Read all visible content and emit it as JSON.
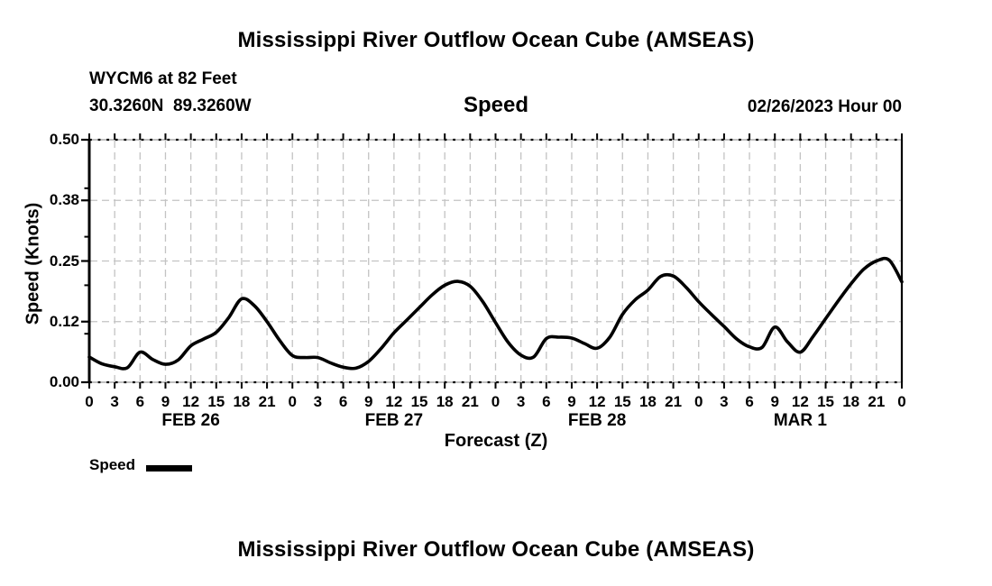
{
  "titles": {
    "top": "Mississippi River Outflow Ocean Cube (AMSEAS)",
    "bottom": "Mississippi River Outflow Ocean Cube (AMSEAS)"
  },
  "header": {
    "station": "WYCM6 at 82 Feet",
    "coordinates": "30.3260N  89.3260W",
    "variable": "Speed",
    "run": "02/26/2023 Hour 00"
  },
  "chart_data": {
    "type": "line",
    "title": "Speed",
    "xlabel": "Forecast (Z)",
    "ylabel": "Speed (Knots)",
    "x_unit": "hours",
    "x_range": [
      0,
      96
    ],
    "x_tick_step_hours": 3,
    "x_tick_labels": [
      "0",
      "3",
      "6",
      "9",
      "12",
      "15",
      "18",
      "21",
      "0",
      "3",
      "6",
      "9",
      "12",
      "15",
      "18",
      "21",
      "0",
      "3",
      "6",
      "9",
      "12",
      "15",
      "18",
      "21",
      "0",
      "3",
      "6",
      "9",
      "12",
      "15",
      "18",
      "21",
      "0"
    ],
    "day_labels": [
      {
        "label": "FEB 26",
        "center_hour": 12
      },
      {
        "label": "FEB 27",
        "center_hour": 36
      },
      {
        "label": "FEB 28",
        "center_hour": 60
      },
      {
        "label": "MAR 1",
        "center_hour": 84
      }
    ],
    "ylim": [
      0,
      0.5
    ],
    "y_major_ticks": [
      0,
      0.125,
      0.25,
      0.375,
      0.5
    ],
    "y_major_tick_labels": [
      "0.00",
      "0.12",
      "0.25",
      "0.38",
      "0.50"
    ],
    "y_minor_ticks": [
      0.1,
      0.2,
      0.3,
      0.4
    ],
    "grid": true,
    "legend_position": "bottom-left",
    "legend": [
      {
        "label": "Speed",
        "color": "#000000"
      }
    ],
    "colors": {
      "line": "#000000",
      "grid": "#c3c3c3",
      "axis": "#000000",
      "border_base": "#9a9a9a"
    },
    "series": [
      {
        "name": "Speed",
        "unit": "knots",
        "points": [
          [
            0,
            0.052
          ],
          [
            1.5,
            0.038
          ],
          [
            3,
            0.032
          ],
          [
            4.5,
            0.03
          ],
          [
            6,
            0.062
          ],
          [
            7.5,
            0.047
          ],
          [
            9,
            0.037
          ],
          [
            10.5,
            0.046
          ],
          [
            12,
            0.075
          ],
          [
            13.5,
            0.089
          ],
          [
            15,
            0.103
          ],
          [
            16.5,
            0.134
          ],
          [
            18,
            0.172
          ],
          [
            19.5,
            0.158
          ],
          [
            21,
            0.125
          ],
          [
            22.5,
            0.086
          ],
          [
            24,
            0.055
          ],
          [
            25.5,
            0.051
          ],
          [
            27,
            0.051
          ],
          [
            28.5,
            0.04
          ],
          [
            30,
            0.031
          ],
          [
            31.5,
            0.029
          ],
          [
            33,
            0.043
          ],
          [
            34.5,
            0.07
          ],
          [
            36,
            0.102
          ],
          [
            37.5,
            0.128
          ],
          [
            39,
            0.154
          ],
          [
            40.5,
            0.18
          ],
          [
            42,
            0.2
          ],
          [
            43.5,
            0.208
          ],
          [
            45,
            0.198
          ],
          [
            46.5,
            0.166
          ],
          [
            48,
            0.123
          ],
          [
            49.5,
            0.082
          ],
          [
            51,
            0.056
          ],
          [
            52.5,
            0.052
          ],
          [
            54,
            0.09
          ],
          [
            55.5,
            0.093
          ],
          [
            57,
            0.091
          ],
          [
            58.5,
            0.08
          ],
          [
            60,
            0.07
          ],
          [
            61.5,
            0.093
          ],
          [
            63,
            0.14
          ],
          [
            64.5,
            0.17
          ],
          [
            66,
            0.19
          ],
          [
            67.5,
            0.218
          ],
          [
            69,
            0.219
          ],
          [
            70.5,
            0.196
          ],
          [
            72,
            0.166
          ],
          [
            73.5,
            0.14
          ],
          [
            75,
            0.115
          ],
          [
            76.5,
            0.089
          ],
          [
            78,
            0.073
          ],
          [
            79.5,
            0.072
          ],
          [
            81,
            0.114
          ],
          [
            82.5,
            0.083
          ],
          [
            84,
            0.062
          ],
          [
            85.5,
            0.094
          ],
          [
            87,
            0.131
          ],
          [
            88.5,
            0.168
          ],
          [
            90,
            0.203
          ],
          [
            91.5,
            0.233
          ],
          [
            93,
            0.25
          ],
          [
            94.5,
            0.252
          ],
          [
            96,
            0.207
          ]
        ]
      }
    ]
  }
}
